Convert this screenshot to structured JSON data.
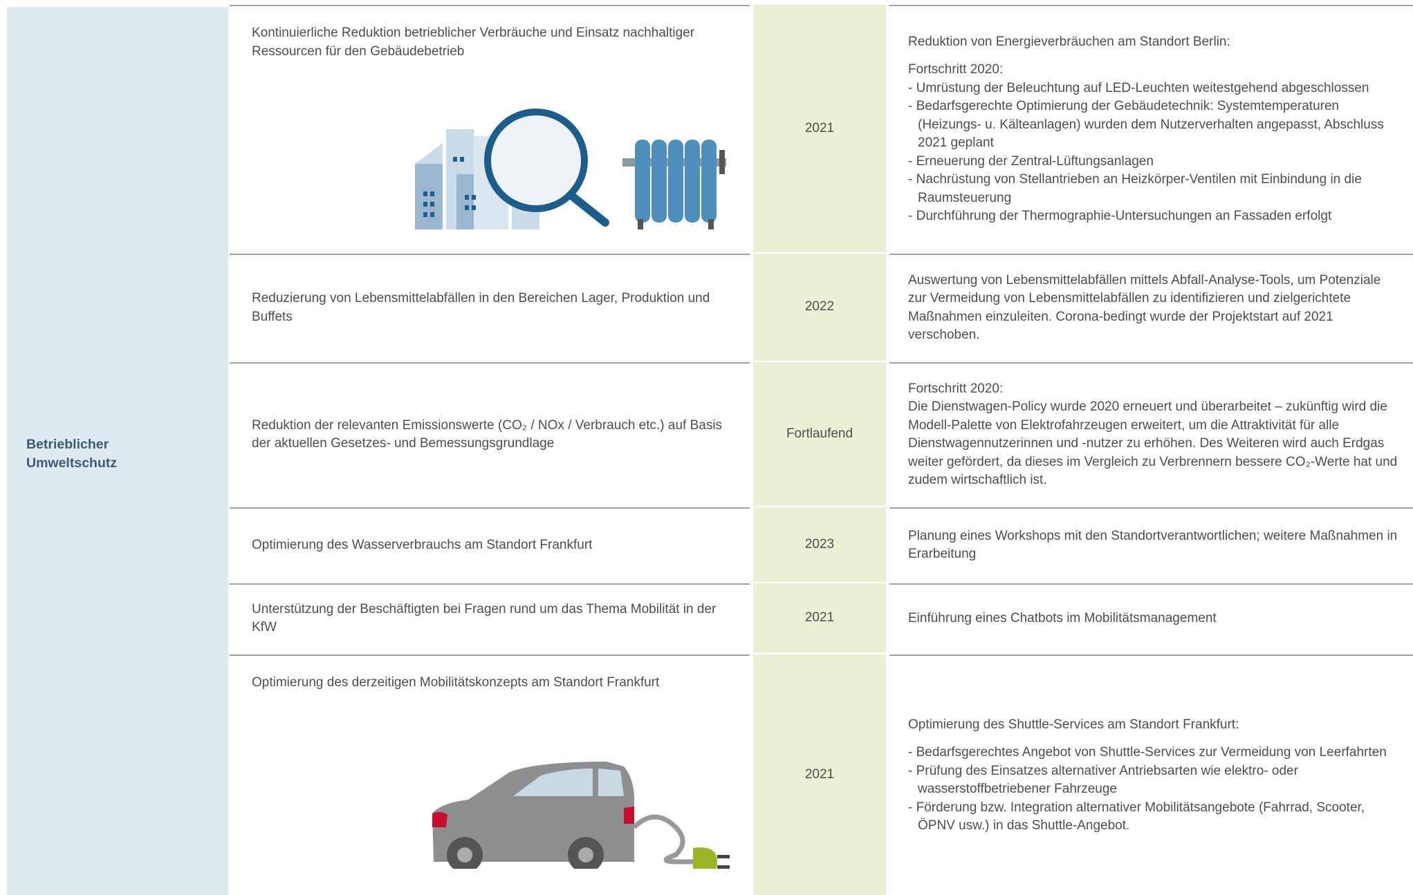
{
  "section": "Betrieblicher Umweltschutz",
  "rows": [
    {
      "measure": "Kontinuierliche Reduktion betrieblicher Verbräuche und Einsatz nachhaltiger Ressourcen für den Gebäudebetrieb",
      "year": "2021",
      "status": [
        [
          "Reduktion von Energieverbräuchen am Standort Berlin:"
        ],
        [
          "Fortschritt 2020:",
          "- Umrüstung der Beleuchtung auf LED-Leuchten weitestgehend abgeschlossen",
          "- Bedarfsgerechte Optimierung der Gebäudetechnik: Systemtemperaturen (Heizungs- u. Kälteanlagen) wurden dem Nutzerverhalten angepasst, Abschluss 2021 geplant",
          "- Erneuerung der Zentral-Lüftungsanlagen",
          "- Nachrüstung von Stellantrieben an Heizkörper-Ventilen mit Einbindung in die Raumsteuerung",
          "- Durchführung der Thermographie-Untersuchungen an Fassaden erfolgt"
        ]
      ]
    },
    {
      "measure": "Reduzierung von Lebensmittelabfällen in den Bereichen Lager, Produktion und Buffets",
      "year": "2022",
      "status": [
        [
          "Auswertung von Lebensmittelabfällen mittels Abfall-Analyse-Tools, um Potenziale zur Vermeidung von Lebensmittelabfällen zu identifizieren und zielgerichtete Maßnahmen einzuleiten. Corona-bedingt wurde der Projektstart auf 2021 verschoben."
        ]
      ]
    },
    {
      "measure": "Reduktion der relevanten Emissionswerte (CO₂ / NOx / Verbrauch etc.) auf Basis der aktuellen Gesetzes- und Bemessungsgrundlage",
      "year": "Fortlaufend",
      "status": [
        [
          "Fortschritt 2020:",
          "Die Dienstwagen-Policy wurde 2020 erneuert und überarbeitet – zukünftig wird die Modell-Palette von Elektrofahrzeugen erweitert, um die Attraktivität für alle Dienstwagennutzerinnen und -nutzer zu erhöhen. Des Weiteren wird auch Erdgas weiter gefördert, da dieses im Vergleich zu Verbrennern bessere CO₂-Werte hat und zudem wirtschaftlich ist."
        ]
      ]
    },
    {
      "measure": "Optimierung des Wasserverbrauchs am Standort Frankfurt",
      "year": "2023",
      "status": [
        [
          "Planung eines Workshops mit den Standortverantwortlichen; weitere Maßnahmen in Erarbeitung"
        ]
      ]
    },
    {
      "measure": "Unterstützung der Beschäftigten bei Fragen rund um das Thema Mobilität in der KfW",
      "year": "2021",
      "status": [
        [
          "Einführung eines Chatbots im Mobilitätsmanagement"
        ]
      ]
    },
    {
      "measure": "Optimierung des derzeitigen Mobilitätskonzepts am Standort Frankfurt",
      "year": "2021",
      "status": [
        [
          "Optimierung des Shuttle-Services am Standort Frankfurt:"
        ],
        [
          "- Bedarfsgerechtes Angebot von Shuttle-Services zur Vermeidung von Leerfahrten",
          "- Prüfung des Einsatzes alternativer Antriebsarten wie elektro- oder wasserstoffbetriebener Fahrzeuge",
          "- Förderung bzw. Integration alternativer Mobilitätsangebote (Fahrrad, Scooter, ÖPNV usw.) in das Shuttle-Angebot."
        ]
      ]
    }
  ]
}
